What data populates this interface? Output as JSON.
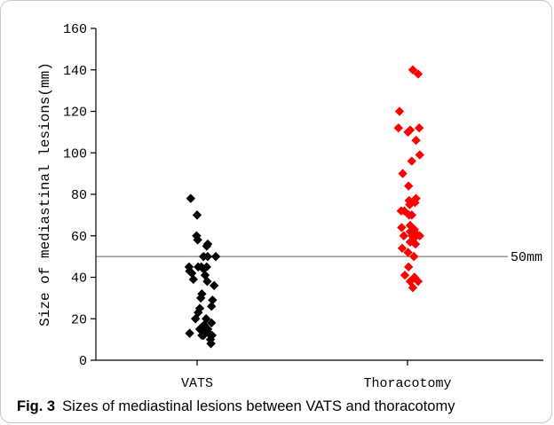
{
  "figure": {
    "caption_label": "Fig. 3",
    "caption_text": "Sizes of mediastinal lesions between VATS and thoracotomy"
  },
  "chart_data": {
    "type": "scatter",
    "ylabel": "Size of mediastinal lesions(mm)",
    "xlabel": "",
    "categories": [
      "VATS",
      "Thoracotomy"
    ],
    "ylim": [
      0,
      160
    ],
    "yticks": [
      0,
      20,
      40,
      60,
      80,
      100,
      120,
      140,
      160
    ],
    "reference_line": {
      "y": 50,
      "label": "50mm",
      "color": "#808080"
    },
    "series": [
      {
        "category": "VATS",
        "color": "#000000",
        "points": [
          {
            "x": -0.12,
            "y": 78
          },
          {
            "x": 0.0,
            "y": 70
          },
          {
            "x": -0.01,
            "y": 60
          },
          {
            "x": 0.01,
            "y": 58
          },
          {
            "x": 0.2,
            "y": 56
          },
          {
            "x": 0.18,
            "y": 55
          },
          {
            "x": 0.2,
            "y": 50
          },
          {
            "x": 0.12,
            "y": 50
          },
          {
            "x": 0.35,
            "y": 50
          },
          {
            "x": 0.18,
            "y": 45
          },
          {
            "x": 0.08,
            "y": 45
          },
          {
            "x": 0.02,
            "y": 45
          },
          {
            "x": -0.15,
            "y": 45
          },
          {
            "x": 0.12,
            "y": 44
          },
          {
            "x": -0.14,
            "y": 43
          },
          {
            "x": -0.1,
            "y": 42
          },
          {
            "x": 0.15,
            "y": 41
          },
          {
            "x": -0.07,
            "y": 39
          },
          {
            "x": 0.19,
            "y": 38
          },
          {
            "x": 0.32,
            "y": 36
          },
          {
            "x": 0.09,
            "y": 32
          },
          {
            "x": 0.07,
            "y": 30
          },
          {
            "x": 0.29,
            "y": 29
          },
          {
            "x": 0.27,
            "y": 26
          },
          {
            "x": 0.05,
            "y": 25
          },
          {
            "x": 0.02,
            "y": 23
          },
          {
            "x": 0.17,
            "y": 20
          },
          {
            "x": -0.03,
            "y": 20
          },
          {
            "x": 0.27,
            "y": 18
          },
          {
            "x": 0.13,
            "y": 17
          },
          {
            "x": 0.05,
            "y": 15
          },
          {
            "x": 0.2,
            "y": 15
          },
          {
            "x": 0.16,
            "y": 14
          },
          {
            "x": 0.22,
            "y": 13
          },
          {
            "x": -0.14,
            "y": 13
          },
          {
            "x": 0.12,
            "y": 12
          },
          {
            "x": 0.09,
            "y": 12
          },
          {
            "x": 0.28,
            "y": 12
          },
          {
            "x": 0.25,
            "y": 10
          },
          {
            "x": 0.26,
            "y": 8
          }
        ]
      },
      {
        "category": "Thoracotomy",
        "color": "#ff0000",
        "points": [
          {
            "x": 0.1,
            "y": 140
          },
          {
            "x": 0.2,
            "y": 138
          },
          {
            "x": -0.15,
            "y": 120
          },
          {
            "x": -0.17,
            "y": 112
          },
          {
            "x": 0.22,
            "y": 112
          },
          {
            "x": 0.05,
            "y": 111
          },
          {
            "x": 0.01,
            "y": 110
          },
          {
            "x": 0.16,
            "y": 106
          },
          {
            "x": 0.23,
            "y": 99
          },
          {
            "x": 0.08,
            "y": 96
          },
          {
            "x": -0.09,
            "y": 90
          },
          {
            "x": 0.02,
            "y": 84
          },
          {
            "x": 0.16,
            "y": 78
          },
          {
            "x": 0.03,
            "y": 77
          },
          {
            "x": 0.14,
            "y": 76
          },
          {
            "x": 0.04,
            "y": 75
          },
          {
            "x": -0.06,
            "y": 72
          },
          {
            "x": -0.12,
            "y": 72
          },
          {
            "x": 0.03,
            "y": 70
          },
          {
            "x": 0.08,
            "y": 70
          },
          {
            "x": 0.05,
            "y": 65
          },
          {
            "x": -0.11,
            "y": 64
          },
          {
            "x": 0.13,
            "y": 63
          },
          {
            "x": 0.05,
            "y": 62
          },
          {
            "x": 0.16,
            "y": 61
          },
          {
            "x": 0.23,
            "y": 60
          },
          {
            "x": 0.09,
            "y": 60
          },
          {
            "x": -0.07,
            "y": 60
          },
          {
            "x": 0.13,
            "y": 59
          },
          {
            "x": 0.05,
            "y": 57
          },
          {
            "x": 0.15,
            "y": 56
          },
          {
            "x": -0.1,
            "y": 54
          },
          {
            "x": 0.01,
            "y": 52
          },
          {
            "x": 0.12,
            "y": 50
          },
          {
            "x": 0.02,
            "y": 45
          },
          {
            "x": -0.05,
            "y": 41
          },
          {
            "x": 0.13,
            "y": 40
          },
          {
            "x": 0.05,
            "y": 38
          },
          {
            "x": 0.2,
            "y": 38
          },
          {
            "x": 0.1,
            "y": 35
          }
        ]
      }
    ]
  }
}
